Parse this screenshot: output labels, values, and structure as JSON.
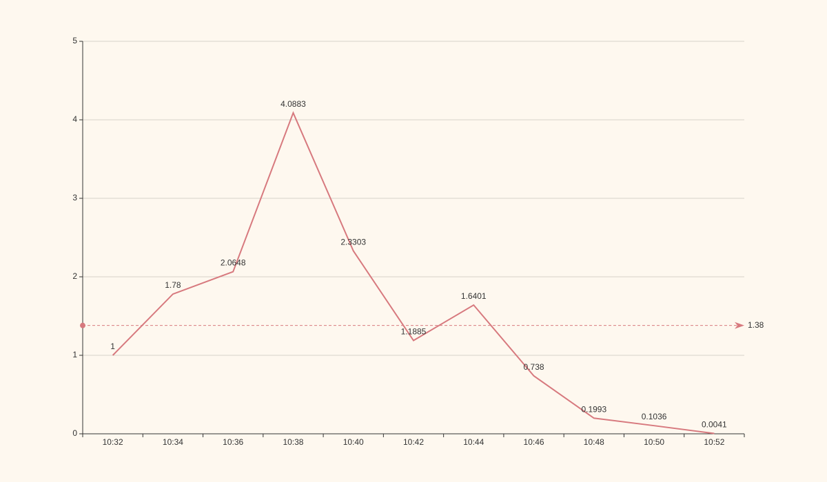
{
  "colors": {
    "background": "#fef8ef",
    "series": "#d7797e",
    "grid": "#d6d2c8",
    "axis": "#333333",
    "text": "#333333"
  },
  "chart_data": {
    "type": "line",
    "title": "",
    "xlabel": "",
    "ylabel": "",
    "categories": [
      "10:32",
      "10:34",
      "10:36",
      "10:38",
      "10:40",
      "10:42",
      "10:44",
      "10:46",
      "10:48",
      "10:50",
      "10:52"
    ],
    "series": [
      {
        "values": [
          1,
          1.78,
          2.0648,
          4.0883,
          2.3303,
          1.1885,
          1.6401,
          0.738,
          0.1993,
          0.1036,
          0.0041
        ],
        "labels": [
          "1",
          "1.78",
          "2.0648",
          "4.0883",
          "2.3303",
          "1.1885",
          "1.6401",
          "0.738",
          "0.1993",
          "0.1036",
          "0.0041"
        ]
      }
    ],
    "ylim": [
      0,
      5
    ],
    "yticks": [
      "0",
      "1",
      "2",
      "3",
      "4",
      "5"
    ],
    "grid": "horizontal",
    "average_line": {
      "value": 1.38,
      "label": "1.38",
      "style": "dashed"
    }
  }
}
